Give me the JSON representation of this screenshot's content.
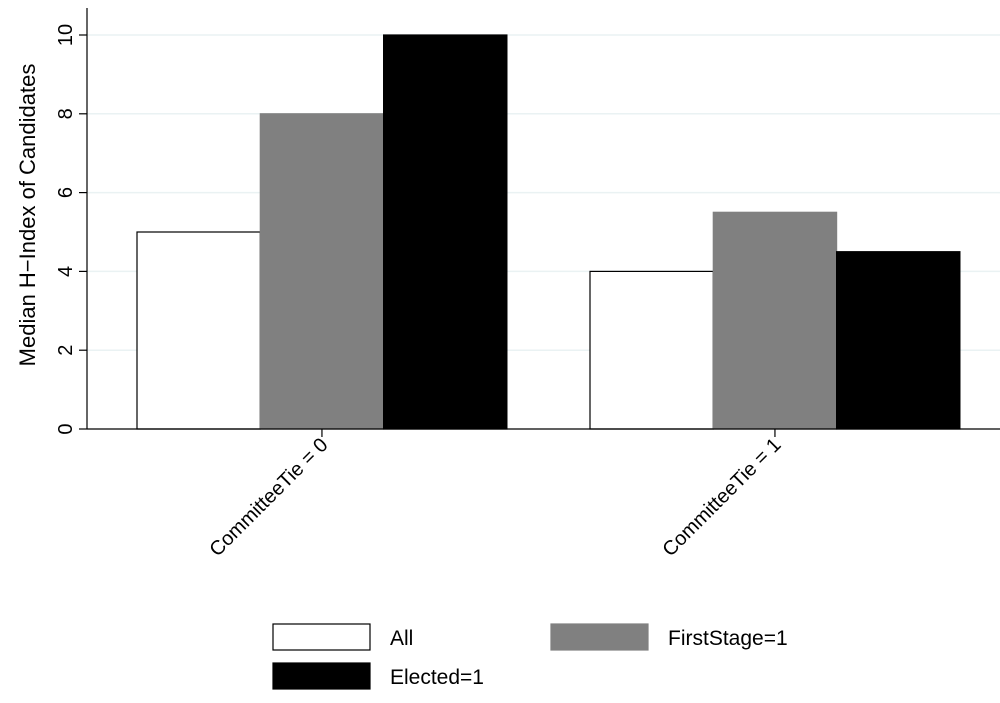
{
  "chart_data": {
    "type": "bar",
    "categories": [
      "CommitteeTie = 0",
      "CommitteeTie = 1"
    ],
    "series": [
      {
        "name": "All",
        "values": [
          5,
          4
        ],
        "color": "#ffffff",
        "stroke": "#000000"
      },
      {
        "name": "FirstStage=1",
        "values": [
          8,
          5.5
        ],
        "color": "#808080",
        "stroke": "#808080"
      },
      {
        "name": "Elected=1",
        "values": [
          10,
          4.5
        ],
        "color": "#000000",
        "stroke": "#000000"
      }
    ],
    "title": "",
    "xlabel": "",
    "ylabel": "Median H−Index of Candidates",
    "ylim": [
      0,
      10.5
    ],
    "yticks": [
      "0",
      "2",
      "4",
      "6",
      "8",
      "10"
    ],
    "grid": true,
    "legend_position": "bottom"
  }
}
